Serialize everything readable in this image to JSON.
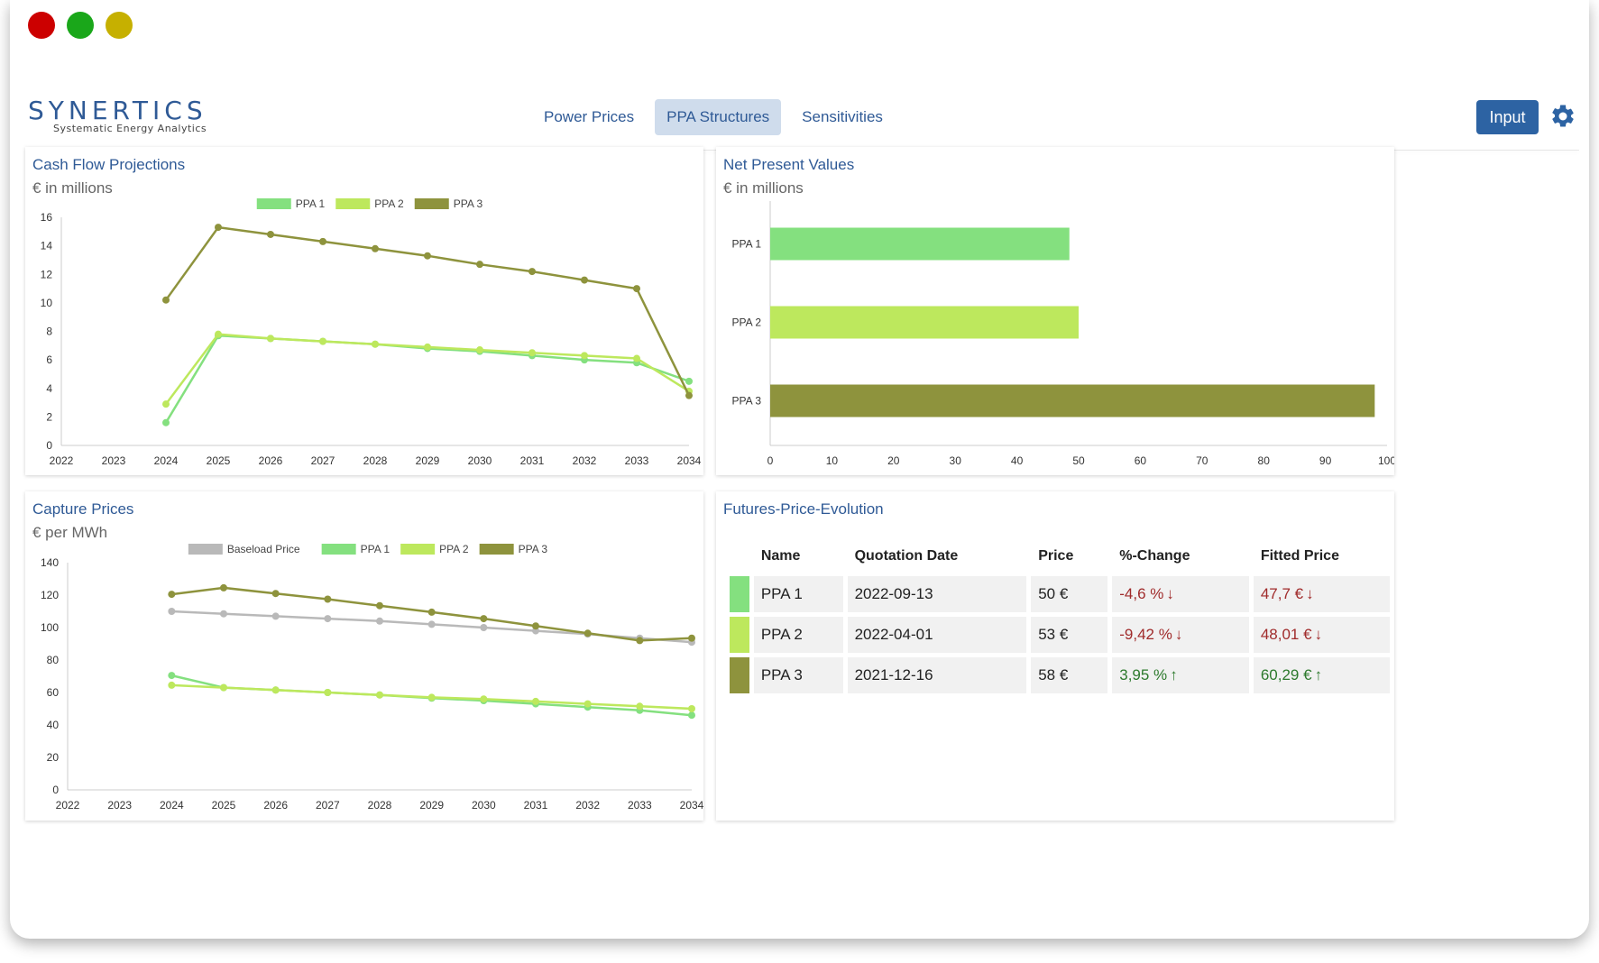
{
  "app": {
    "brand_name": "SYNERTICS",
    "brand_tagline": "Systematic Energy Analytics"
  },
  "nav": {
    "items": [
      {
        "label": "Power Prices",
        "active": false
      },
      {
        "label": "PPA Structures",
        "active": true
      },
      {
        "label": "Sensitivities",
        "active": false
      }
    ],
    "input_label": "Input",
    "settings_icon": "gear-icon"
  },
  "colors": {
    "ppa1": "#84e07f",
    "ppa2": "#bde85d",
    "ppa3": "#8e933d",
    "baseload": "#b9b9b9",
    "accent": "#2f5a96",
    "negative": "#a02b2b",
    "positive": "#2d7a2d"
  },
  "cashflow": {
    "title": "Cash Flow Projections",
    "subtitle": "€ in millions"
  },
  "npv": {
    "title": "Net Present Values",
    "subtitle": "€ in millions"
  },
  "capture": {
    "title": "Capture Prices",
    "subtitle": "€ per MWh"
  },
  "futures": {
    "title": "Futures-Price-Evolution",
    "columns": [
      "Name",
      "Quotation Date",
      "Price",
      "%-Change",
      "Fitted Price"
    ],
    "rows": [
      {
        "name": "PPA 1",
        "date": "2022-09-13",
        "price": "50 €",
        "change": "-4,6 %",
        "change_dir": "down",
        "fitted": "47,7 €",
        "fitted_dir": "down"
      },
      {
        "name": "PPA 2",
        "date": "2022-04-01",
        "price": "53 €",
        "change": "-9,42 %",
        "change_dir": "down",
        "fitted": "48,01 €",
        "fitted_dir": "down"
      },
      {
        "name": "PPA 3",
        "date": "2021-12-16",
        "price": "58 €",
        "change": "3,95 %",
        "change_dir": "up",
        "fitted": "60,29 €",
        "fitted_dir": "up"
      }
    ]
  },
  "chart_data": [
    {
      "id": "cashflow",
      "type": "line",
      "title": "Cash Flow Projections",
      "subtitle": "€ in millions",
      "x": [
        2022,
        2023,
        2024,
        2025,
        2026,
        2027,
        2028,
        2029,
        2030,
        2031,
        2032,
        2033,
        2034
      ],
      "ylim": [
        0,
        16
      ],
      "yticks": [
        0,
        2,
        4,
        6,
        8,
        10,
        12,
        14,
        16
      ],
      "legend": "top",
      "series": [
        {
          "name": "PPA 1",
          "x": [
            2024,
            2025,
            2026,
            2027,
            2028,
            2029,
            2030,
            2031,
            2032,
            2033,
            2034
          ],
          "values": [
            1.6,
            7.7,
            7.5,
            7.3,
            7.1,
            6.8,
            6.6,
            6.3,
            6.0,
            5.8,
            4.5
          ]
        },
        {
          "name": "PPA 2",
          "x": [
            2024,
            2025,
            2026,
            2027,
            2028,
            2029,
            2030,
            2031,
            2032,
            2033,
            2034
          ],
          "values": [
            2.9,
            7.8,
            7.5,
            7.3,
            7.1,
            6.9,
            6.7,
            6.5,
            6.3,
            6.1,
            3.8
          ]
        },
        {
          "name": "PPA 3",
          "x": [
            2024,
            2025,
            2026,
            2027,
            2028,
            2029,
            2030,
            2031,
            2032,
            2033,
            2034
          ],
          "values": [
            10.2,
            15.3,
            14.8,
            14.3,
            13.8,
            13.3,
            12.7,
            12.2,
            11.6,
            11.0,
            3.5
          ]
        }
      ]
    },
    {
      "id": "npv",
      "type": "bar",
      "orientation": "horizontal",
      "title": "Net Present Values",
      "subtitle": "€ in millions",
      "categories": [
        "PPA 1",
        "PPA 2",
        "PPA 3"
      ],
      "values": [
        48.5,
        50,
        98
      ],
      "xlim": [
        0,
        100
      ],
      "xticks": [
        0,
        10,
        20,
        30,
        40,
        50,
        60,
        70,
        80,
        90,
        100
      ]
    },
    {
      "id": "capture",
      "type": "line",
      "title": "Capture Prices",
      "subtitle": "€ per MWh",
      "x": [
        2022,
        2023,
        2024,
        2025,
        2026,
        2027,
        2028,
        2029,
        2030,
        2031,
        2032,
        2033,
        2034
      ],
      "ylim": [
        0,
        140
      ],
      "yticks": [
        0,
        20,
        40,
        60,
        80,
        100,
        120,
        140
      ],
      "legend": "top",
      "series": [
        {
          "name": "Baseload Price",
          "x": [
            2024,
            2025,
            2026,
            2027,
            2028,
            2029,
            2030,
            2031,
            2032,
            2033,
            2034
          ],
          "values": [
            110,
            108.5,
            107,
            105.5,
            104,
            102,
            100,
            98,
            96,
            93.5,
            91
          ]
        },
        {
          "name": "PPA 1",
          "x": [
            2024,
            2025,
            2026,
            2027,
            2028,
            2029,
            2030,
            2031,
            2032,
            2033,
            2034
          ],
          "values": [
            70.5,
            63,
            61.5,
            60,
            58.5,
            56.5,
            55,
            53,
            51,
            49,
            46
          ]
        },
        {
          "name": "PPA 2",
          "x": [
            2024,
            2025,
            2026,
            2027,
            2028,
            2029,
            2030,
            2031,
            2032,
            2033,
            2034
          ],
          "values": [
            64.5,
            63,
            61.5,
            60,
            58.5,
            57,
            56,
            54.5,
            53,
            51.5,
            50
          ]
        },
        {
          "name": "PPA 3",
          "x": [
            2024,
            2025,
            2026,
            2027,
            2028,
            2029,
            2030,
            2031,
            2032,
            2033,
            2034
          ],
          "values": [
            120.5,
            124.5,
            121,
            117.5,
            113.5,
            109.5,
            105.5,
            101,
            96.5,
            92,
            93.5
          ]
        }
      ]
    }
  ]
}
